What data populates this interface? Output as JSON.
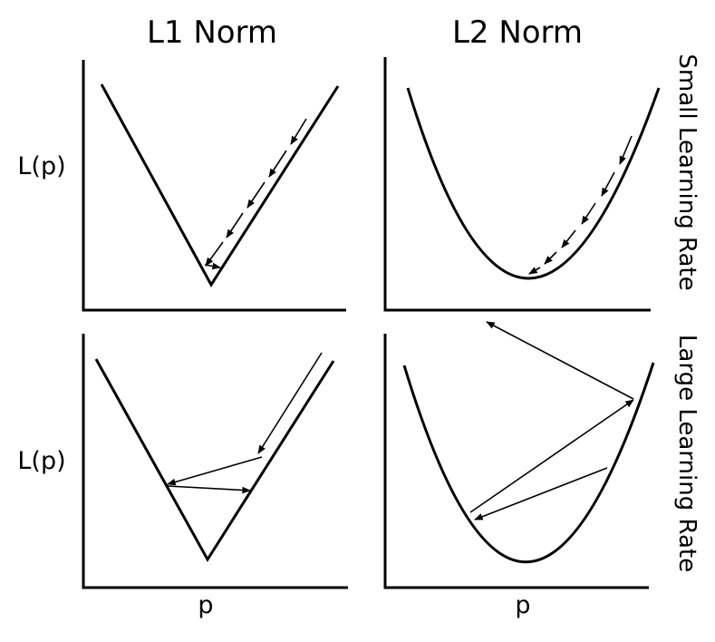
{
  "columns": [
    "L1 Norm",
    "L2 Norm"
  ],
  "rows": [
    "Small Learning Rate",
    "Large Learning Rate"
  ],
  "ylabel": "L(p)",
  "xlabel": "p",
  "colors": {
    "ink": "#000000",
    "background": "#ffffff"
  }
}
